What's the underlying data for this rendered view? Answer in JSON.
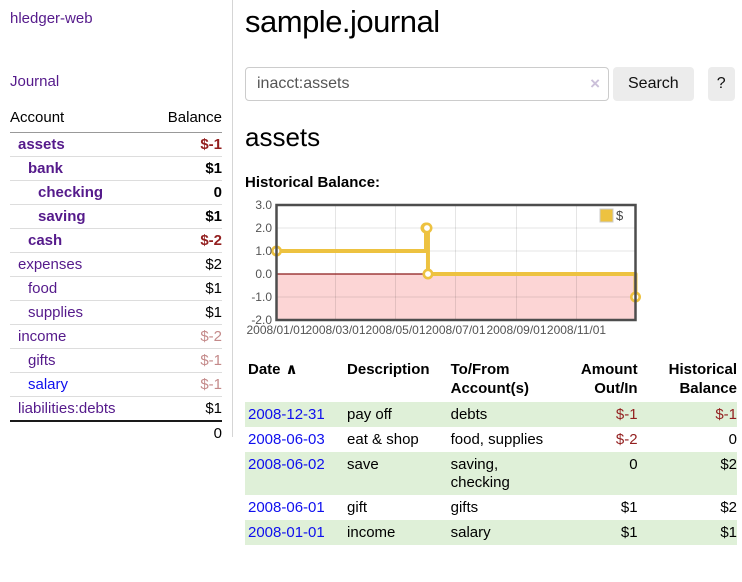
{
  "colors": {
    "purple": "#551a8b",
    "link_blue": "#0f0fee",
    "neg_red": "#931f1f",
    "neg_faded": "#c48a8a",
    "stripe_green": "#dff0d8",
    "chart_gold": "#edc240",
    "chart_negative_bg": "#fcd5d5",
    "chart_zero_line": "#8b1a1a",
    "chart_border": "#4d4d4d",
    "axis_text": "#545454"
  },
  "app": {
    "title": "hledger-web",
    "nav_journal": "Journal"
  },
  "sidebar": {
    "header": {
      "account": "Account",
      "balance": "Balance"
    },
    "accounts": [
      {
        "name": "assets",
        "indent": 0,
        "bold": true,
        "balance": "$-1",
        "balance_class": "neg"
      },
      {
        "name": "bank",
        "indent": 1,
        "bold": true,
        "balance": "$1",
        "balance_class": "pos"
      },
      {
        "name": "checking",
        "indent": 2,
        "bold": true,
        "balance": "0",
        "balance_class": "pos"
      },
      {
        "name": "saving",
        "indent": 2,
        "bold": true,
        "balance": "$1",
        "balance_class": "pos"
      },
      {
        "name": "cash",
        "indent": 1,
        "bold": true,
        "balance": "$-2",
        "balance_class": "neg"
      },
      {
        "name": "expenses",
        "indent": 0,
        "bold": false,
        "balance": "$2",
        "balance_class": "pos"
      },
      {
        "name": "food",
        "indent": 1,
        "bold": false,
        "balance": "$1",
        "balance_class": "pos"
      },
      {
        "name": "supplies",
        "indent": 1,
        "bold": false,
        "balance": "$1",
        "balance_class": "pos"
      },
      {
        "name": "income",
        "indent": 0,
        "bold": false,
        "balance": "$-2",
        "balance_class": "neg-faded"
      },
      {
        "name": "gifts",
        "indent": 1,
        "bold": false,
        "balance": "$-1",
        "balance_class": "neg-faded"
      },
      {
        "name": "salary",
        "indent": 1,
        "bold": false,
        "balance": "$-1",
        "balance_class": "neg-faded",
        "link_color": "blue"
      },
      {
        "name": "liabilities:debts",
        "indent": 0,
        "bold": false,
        "balance": "$1",
        "balance_class": "pos"
      }
    ],
    "total": "0"
  },
  "main": {
    "title": "sample.journal",
    "search": {
      "value": "inacct:assets",
      "clear_icon": "×",
      "button": "Search",
      "help_button": "?"
    },
    "account_heading": "assets",
    "chart_label": "Historical Balance:"
  },
  "chart_data": {
    "type": "line",
    "title": "Historical Balance:",
    "steps": true,
    "series": [
      {
        "name": "$",
        "color": "#edc240",
        "points": [
          [
            "2008-01-01",
            1
          ],
          [
            "2008-06-01",
            2
          ],
          [
            "2008-06-02",
            2
          ],
          [
            "2008-06-03",
            0
          ],
          [
            "2008-12-31",
            -1
          ]
        ]
      }
    ],
    "x_range": [
      "2008-01-01",
      "2008-12-31"
    ],
    "x_ticks": [
      "2008/01/01",
      "2008/03/01",
      "2008/05/01",
      "2008/07/01",
      "2008/09/01",
      "2008/11/01"
    ],
    "ylim": [
      -2,
      3
    ],
    "y_ticks": [
      "3.0",
      "2.0",
      "1.0",
      "0.0",
      "-1.0",
      "-2.0"
    ],
    "grid": true,
    "legend_position": "top-right",
    "legend_label": "$",
    "negative_region_shaded": true
  },
  "register": {
    "headers": {
      "date": "Date",
      "sort_indicator": "∧",
      "description": "Description",
      "account_line1": "To/From",
      "account_line2": "Account(s)",
      "amount_line1": "Amount",
      "amount_line2": "Out/In",
      "balance_line1": "Historical",
      "balance_line2": "Balance"
    },
    "rows": [
      {
        "date": "2008-12-31",
        "description": "pay off",
        "accounts": "debts",
        "amount": "$-1",
        "amount_neg": true,
        "balance": "$-1",
        "balance_neg": true
      },
      {
        "date": "2008-06-03",
        "description": "eat & shop",
        "accounts": "food, supplies",
        "amount": "$-2",
        "amount_neg": true,
        "balance": "0",
        "balance_neg": false
      },
      {
        "date": "2008-06-02",
        "description": "save",
        "accounts": "saving, checking",
        "amount": "0",
        "amount_neg": false,
        "balance": "$2",
        "balance_neg": false
      },
      {
        "date": "2008-06-01",
        "description": "gift",
        "accounts": "gifts",
        "amount": "$1",
        "amount_neg": false,
        "balance": "$2",
        "balance_neg": false
      },
      {
        "date": "2008-01-01",
        "description": "income",
        "accounts": "salary",
        "amount": "$1",
        "amount_neg": false,
        "balance": "$1",
        "balance_neg": false
      }
    ]
  }
}
